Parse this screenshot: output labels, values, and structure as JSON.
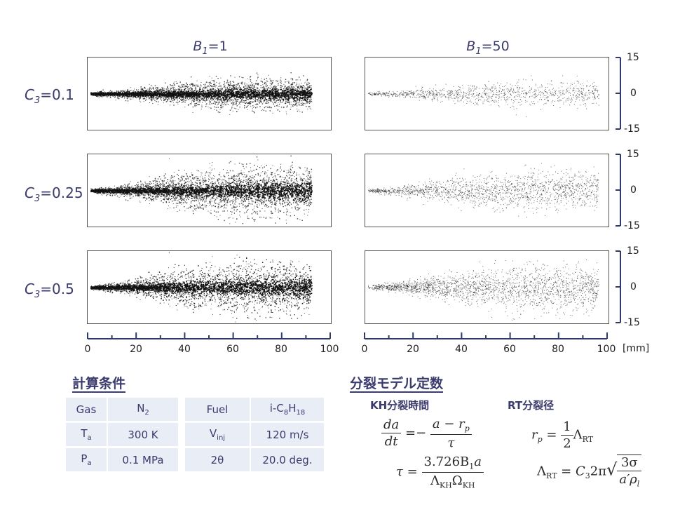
{
  "columns": [
    {
      "sym": "B",
      "sub": "1",
      "val": "=1"
    },
    {
      "sym": "B",
      "sub": "1",
      "val": "=50"
    }
  ],
  "rows": [
    {
      "sym": "C",
      "sub": "3",
      "val": "=0.1"
    },
    {
      "sym": "C",
      "sub": "3",
      "val": "=0.25"
    },
    {
      "sym": "C",
      "sub": "3",
      "val": "=0.5"
    }
  ],
  "y_ticks": [
    "15",
    "0",
    "-15"
  ],
  "x_ticks": [
    "0",
    "20",
    "40",
    "60",
    "80",
    "100"
  ],
  "x_unit": "[mm]",
  "conditions": {
    "title": "計算条件",
    "rows": [
      {
        "a_label": "Gas",
        "a_value": "N",
        "a_value_sub": "2",
        "b_label": "Fuel",
        "b_value_pre": "i-C",
        "b_value_sub1": "8",
        "b_value_mid": "H",
        "b_value_sub2": "18"
      },
      {
        "a_label": "T",
        "a_label_sub": "a",
        "a_value": "300 K",
        "b_label": "V",
        "b_label_sub": "inj",
        "b_value": "120 m/s"
      },
      {
        "a_label": "P",
        "a_label_sub": "a",
        "a_value": "0.1 MPa",
        "b_label": "2θ",
        "b_value": "20.0 deg."
      }
    ]
  },
  "model": {
    "title": "分裂モデル定数",
    "kh_title": "KH分裂時間",
    "rt_title": "RT分裂径"
  },
  "equations": {
    "kh_rate": {
      "lhs_num": "da",
      "lhs_den": "dt",
      "eq": "=−",
      "rhs_num": "a − r",
      "rhs_num_sub": "p",
      "rhs_den": "τ"
    },
    "kh_tau": {
      "lhs": "τ =",
      "num": "3.726B",
      "num_sub": "1",
      "num_tail": "a",
      "den": "Λ",
      "den_sub1": "KH",
      "den_mid": "Ω",
      "den_sub2": "KH"
    },
    "rt_rp": {
      "lhs": "r",
      "lhs_sub": "p",
      "eq": "=",
      "num": "1",
      "den": "2",
      "tail": "Λ",
      "tail_sub": "RT"
    },
    "rt_lambda": {
      "lhs": "Λ",
      "lhs_sub": "RT",
      "eq": "= C",
      "c_sub": "3",
      "mid": "2π",
      "num": "3σ",
      "den": "a′ρ",
      "den_sub": "l"
    }
  },
  "panels": [
    {
      "row": 0,
      "col": 0,
      "spread": 0.55,
      "density": 1.0
    },
    {
      "row": 0,
      "col": 1,
      "spread": 0.45,
      "density": 0.35
    },
    {
      "row": 1,
      "col": 0,
      "spread": 0.95,
      "density": 1.0
    },
    {
      "row": 1,
      "col": 1,
      "spread": 0.75,
      "density": 0.55
    },
    {
      "row": 2,
      "col": 0,
      "spread": 1.05,
      "density": 1.0
    },
    {
      "row": 2,
      "col": 1,
      "spread": 0.9,
      "density": 0.7
    }
  ]
}
